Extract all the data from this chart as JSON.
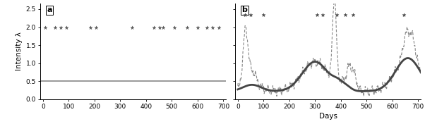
{
  "panel_a": {
    "label": "a",
    "line_y": 0.5,
    "xlim": [
      -10,
      710
    ],
    "ylim": [
      0,
      2.65
    ],
    "yticks": [
      0.0,
      0.5,
      1.0,
      1.5,
      2.0,
      2.5
    ],
    "xticks": [
      0,
      100,
      200,
      300,
      400,
      500,
      600,
      700
    ],
    "asterisk_x": [
      10,
      48,
      70,
      90,
      185,
      205,
      345,
      430,
      453,
      467,
      510,
      560,
      600,
      635,
      658,
      683
    ],
    "asterisk_y": 1.99,
    "line_color": "#888888",
    "marker_color": "#555555"
  },
  "panel_b": {
    "label": "b",
    "xlim": [
      -10,
      710
    ],
    "ylim": [
      0,
      2.65
    ],
    "yticks": [
      0.0,
      0.5,
      1.0,
      1.5,
      2.0,
      2.5
    ],
    "xticks": [
      0,
      100,
      200,
      300,
      400,
      500,
      600,
      700
    ],
    "asterisk_x": [
      28,
      50,
      100,
      308,
      330,
      383,
      418,
      448,
      643
    ],
    "asterisk_y": 2.35,
    "smooth_color": "#444444",
    "dashed_color": "#888888"
  },
  "ylabel": "Intensity λ",
  "xlabel": "Days",
  "background_color": "#ffffff"
}
